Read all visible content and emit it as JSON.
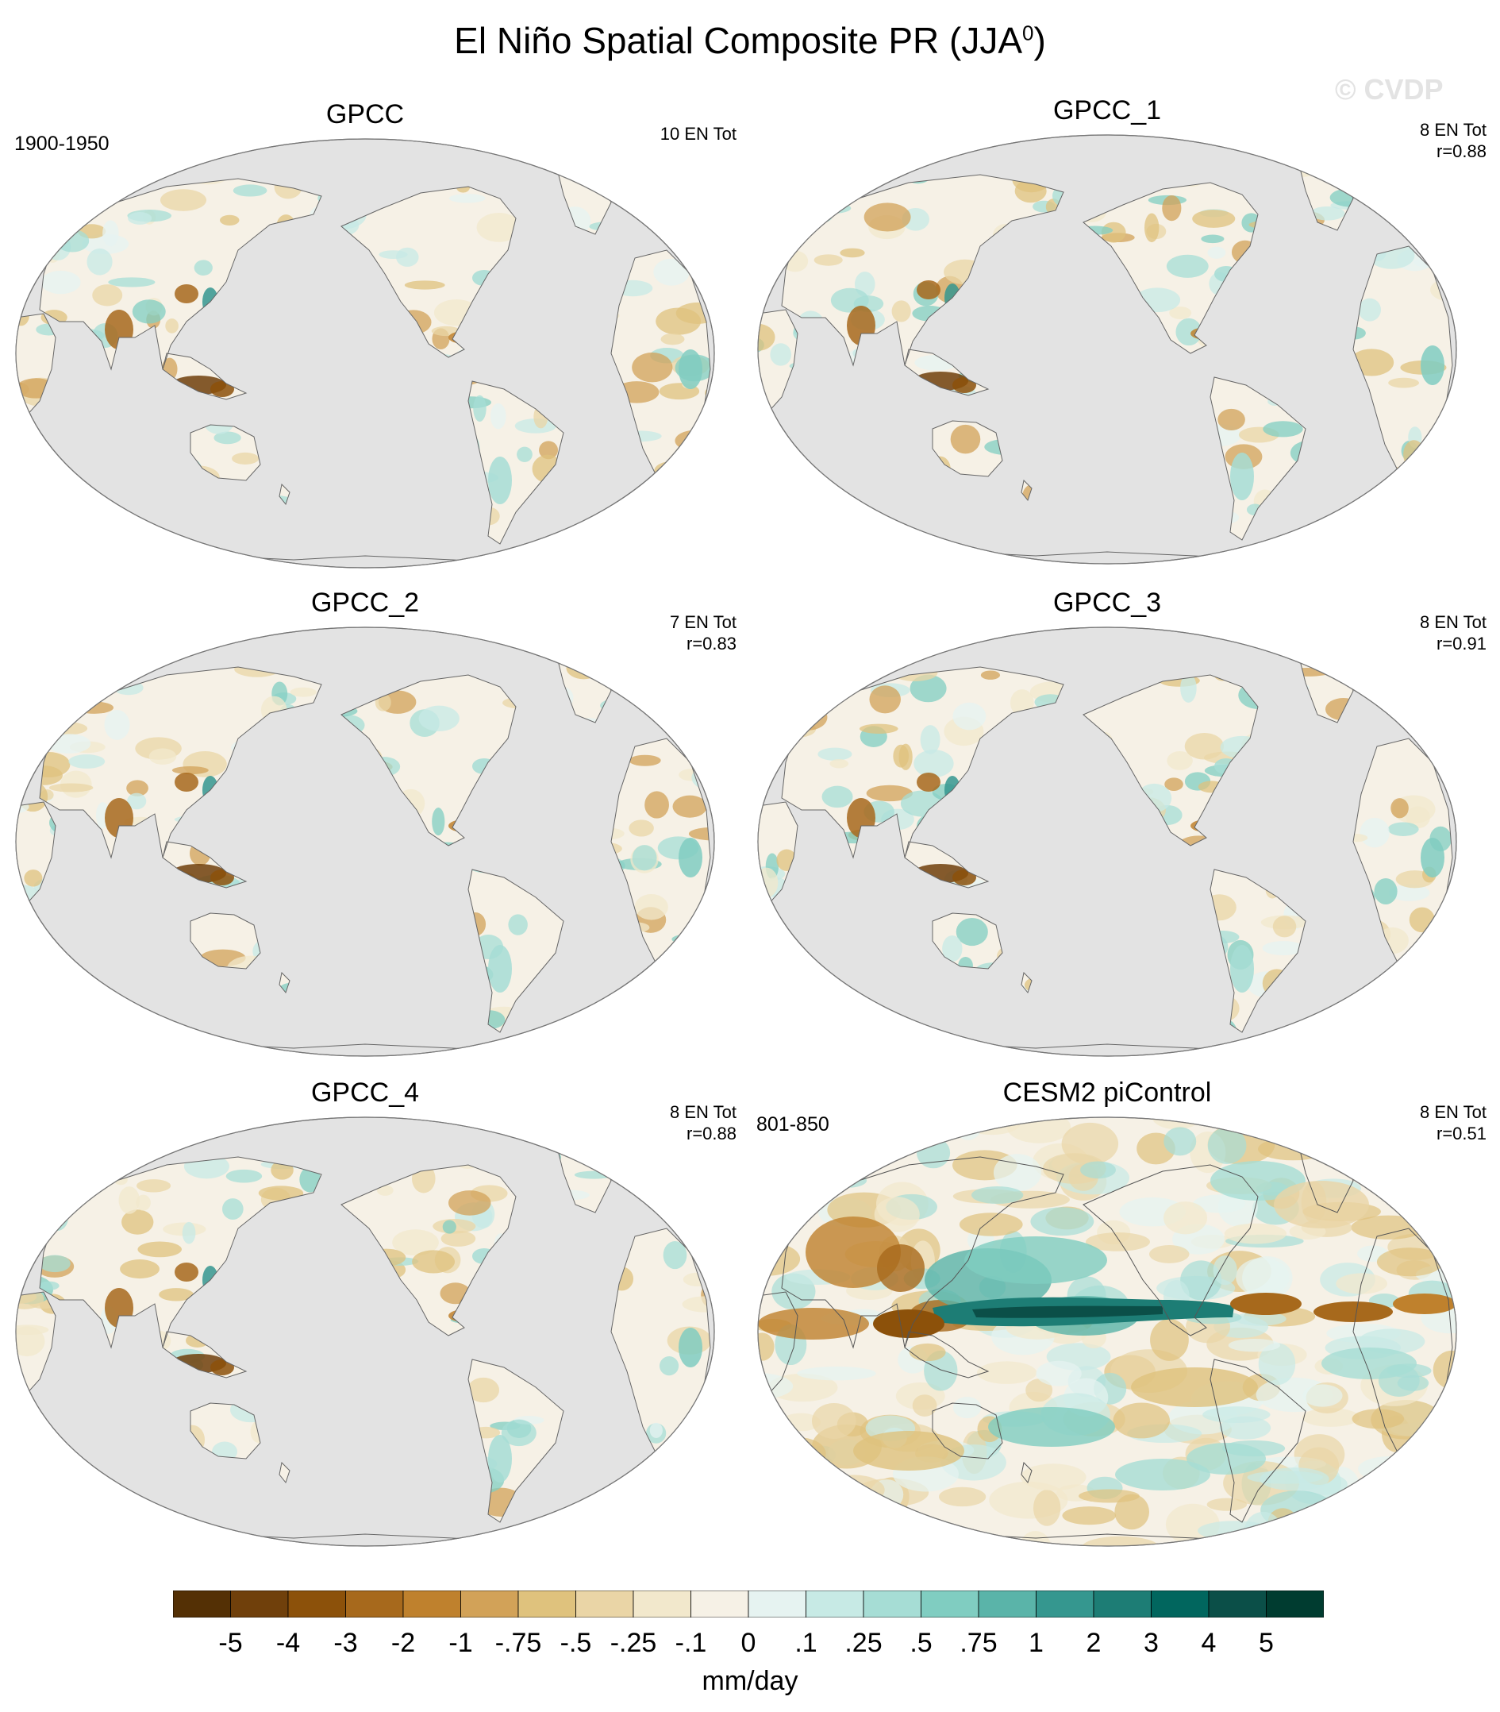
{
  "figure": {
    "title_main": "El Niño Spatial Composite PR (JJA",
    "title_sup": "0",
    "title_close": ")",
    "watermark": "© CVDP"
  },
  "panels": [
    {
      "title": "GPCC",
      "count": "10 EN Tot",
      "corr": "",
      "range": "1900-1950",
      "type": "obs"
    },
    {
      "title": "GPCC_1",
      "count": "8 EN Tot",
      "corr": "r=0.88",
      "range": "",
      "type": "obs"
    },
    {
      "title": "GPCC_2",
      "count": "7 EN Tot",
      "corr": "r=0.83",
      "range": "",
      "type": "obs"
    },
    {
      "title": "GPCC_3",
      "count": "8 EN Tot",
      "corr": "r=0.91",
      "range": "",
      "type": "obs"
    },
    {
      "title": "GPCC_4",
      "count": "8 EN Tot",
      "corr": "r=0.88",
      "range": "",
      "type": "obs"
    },
    {
      "title": "CESM2 piControl",
      "count": "8 EN Tot",
      "corr": "r=0.51",
      "range": "801-850",
      "type": "model"
    }
  ],
  "colorbar": {
    "labels": [
      "-5",
      "-4",
      "-3",
      "-2",
      "-1",
      "-.75",
      "-.5",
      "-.25",
      "-.1",
      "0",
      ".1",
      ".25",
      ".5",
      ".75",
      "1",
      "2",
      "3",
      "4",
      "5"
    ],
    "colors": [
      "#543005",
      "#70400b",
      "#8c510a",
      "#a7691c",
      "#bf812d",
      "#d2a258",
      "#dfc27d",
      "#ead5a6",
      "#f2e8cc",
      "#f6f1e6",
      "#e6f3f1",
      "#c7eae5",
      "#a6ddd5",
      "#80cdc1",
      "#5ab4a9",
      "#35978f",
      "#1d7d75",
      "#01665e",
      "#0b4f48",
      "#003c30"
    ],
    "units": "mm/day"
  }
}
